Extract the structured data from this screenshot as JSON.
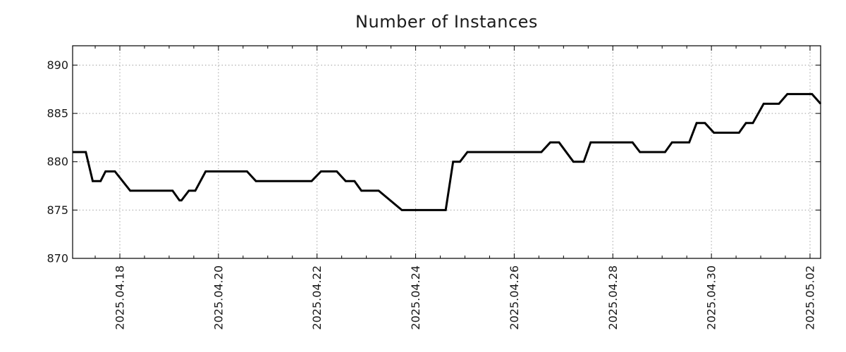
{
  "chart_data": {
    "type": "line",
    "title": "Number of Instances",
    "x_axis": {
      "kind": "time",
      "tick_labels": [
        "2025.04.18",
        "2025.04.20",
        "2025.04.22",
        "2025.04.24",
        "2025.04.26",
        "2025.04.28",
        "2025.04.30",
        "2025.05.02"
      ],
      "tick_positions_days": [
        0,
        2,
        4,
        6,
        8,
        10,
        12,
        14
      ],
      "minor_tick_interval_days": 0.5,
      "lim_days": [
        -0.958,
        14.215
      ],
      "tick_label_rotation_deg": -90,
      "grid": true
    },
    "y_axis": {
      "tick_labels": [
        "870",
        "875",
        "880",
        "885",
        "890"
      ],
      "tick_values": [
        870,
        875,
        880,
        885,
        890
      ],
      "lim": [
        870,
        892
      ],
      "grid": true
    },
    "series": [
      {
        "name": "instances",
        "color": "#000000",
        "line_width": 3,
        "points_day_value": [
          [
            -0.958,
            881
          ],
          [
            -0.69,
            881
          ],
          [
            -0.55,
            878
          ],
          [
            -0.39,
            878
          ],
          [
            -0.29,
            879
          ],
          [
            -0.1,
            879
          ],
          [
            0.21,
            877
          ],
          [
            1.07,
            877
          ],
          [
            1.21,
            876
          ],
          [
            1.25,
            876
          ],
          [
            1.4,
            877
          ],
          [
            1.53,
            877
          ],
          [
            1.74,
            879
          ],
          [
            2.58,
            879
          ],
          [
            2.76,
            878
          ],
          [
            3.89,
            878
          ],
          [
            4.08,
            879
          ],
          [
            4.4,
            879
          ],
          [
            4.58,
            878
          ],
          [
            4.76,
            878
          ],
          [
            4.9,
            877
          ],
          [
            5.25,
            877
          ],
          [
            5.72,
            875
          ],
          [
            6.61,
            875
          ],
          [
            6.76,
            880
          ],
          [
            6.9,
            880
          ],
          [
            7.05,
            881
          ],
          [
            8.55,
            881
          ],
          [
            8.73,
            882
          ],
          [
            8.91,
            882
          ],
          [
            9.2,
            880
          ],
          [
            9.41,
            880
          ],
          [
            9.55,
            882
          ],
          [
            10.4,
            882
          ],
          [
            10.55,
            881
          ],
          [
            11.06,
            881
          ],
          [
            11.2,
            882
          ],
          [
            11.55,
            882
          ],
          [
            11.7,
            884
          ],
          [
            11.87,
            884
          ],
          [
            12.05,
            883
          ],
          [
            12.56,
            883
          ],
          [
            12.7,
            884
          ],
          [
            12.84,
            884
          ],
          [
            13.06,
            886
          ],
          [
            13.37,
            886
          ],
          [
            13.54,
            887
          ],
          [
            14.04,
            887
          ],
          [
            14.215,
            886
          ]
        ]
      }
    ],
    "legend": "none",
    "grid_style": "dotted",
    "colors": {
      "line": "#000000",
      "grid": "#a0a0a0",
      "axis": "#000000",
      "text": "#1a1a1a",
      "background": "#ffffff"
    }
  }
}
